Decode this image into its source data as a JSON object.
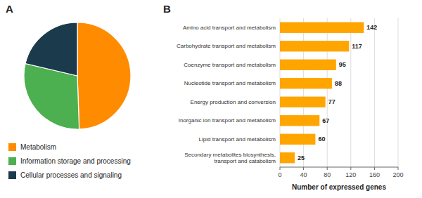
{
  "chart_data": [
    {
      "type": "pie",
      "title": "A",
      "categories": [
        "Metabolism",
        "Information storage and processing",
        "Cellular processes and signaling"
      ],
      "values": [
        671,
        397,
        289
      ],
      "colors": [
        "#FF8C00",
        "#4CAF50",
        "#1B3A4B"
      ],
      "data_labels": true,
      "legend": "bottom"
    },
    {
      "type": "bar",
      "title": "B",
      "orientation": "horizontal",
      "categories": [
        "Amino acid transport and metabolism",
        "Carbohydrate transport and metabolism",
        "Coenzyme transport and metabolism",
        "Nucleotide transport and metabolism",
        "Energy production and conversion",
        "Inorganic ion transport and metabolism",
        "Lipid transport and metabolism",
        "Secondary metabolites biosynthesis, transport and catabolism"
      ],
      "values": [
        142,
        117,
        95,
        88,
        77,
        67,
        60,
        25
      ],
      "color": "#FFA500",
      "xlabel": "Number of expressed genes",
      "xlim": [
        0,
        200
      ],
      "xticks": [
        0,
        40,
        80,
        120,
        160,
        200
      ],
      "grid": true,
      "data_labels": true
    }
  ]
}
